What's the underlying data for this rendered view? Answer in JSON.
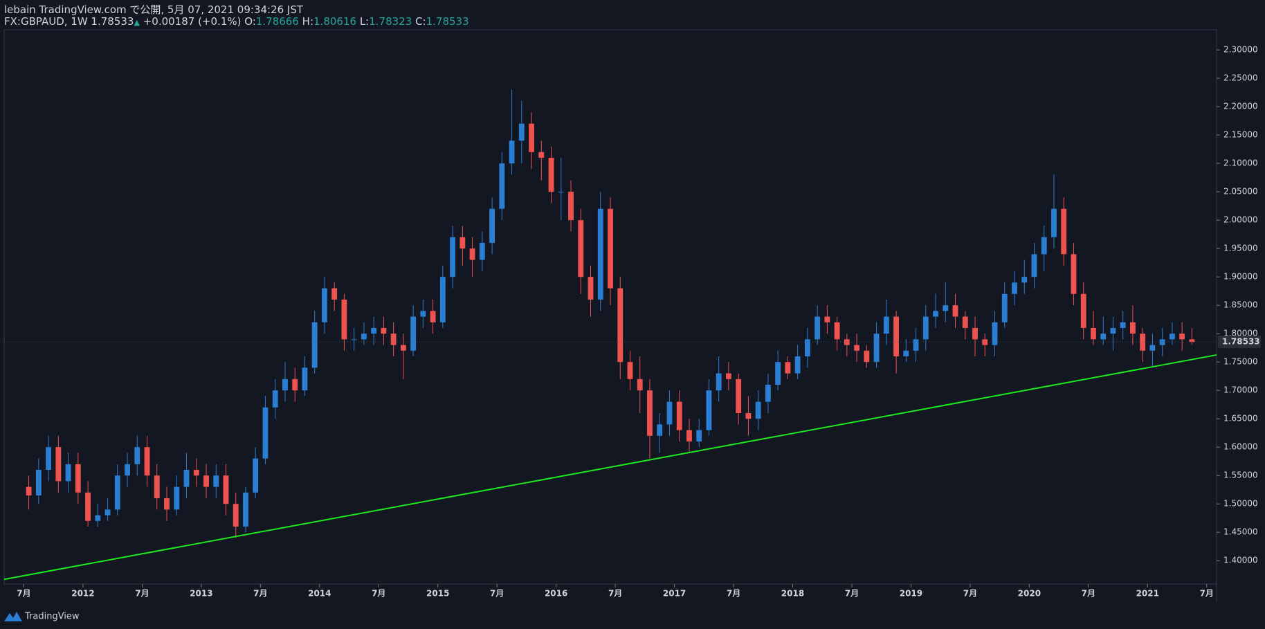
{
  "header": {
    "line1": "lebain TradingView.com で公開, 5月 07, 2021 09:34:26 JST",
    "symbol": "FX:GBPAUD, 1W 1.78533",
    "arrow": "▲",
    "change": "+0.00187 (+0.1%)",
    "o_label": "O:",
    "o": "1.78666",
    "h_label": "H:",
    "h": "1.80616",
    "l_label": "L:",
    "l": "1.78323",
    "c_label": "C:",
    "c": "1.78533"
  },
  "footer": {
    "brand": "TradingView"
  },
  "chart_data": {
    "type": "candlestick",
    "up_color": "#2a7fd4",
    "down_color": "#ef5350",
    "x": [
      "2011-07",
      "2011-08",
      "2011-09",
      "2011-10",
      "2011-11",
      "2011-12",
      "2012-01",
      "2012-02",
      "2012-03",
      "2012-04",
      "2012-05",
      "2012-06",
      "2012-07",
      "2012-08",
      "2012-09",
      "2012-10",
      "2012-11",
      "2012-12",
      "2013-01",
      "2013-02",
      "2013-03",
      "2013-04",
      "2013-05",
      "2013-06",
      "2013-07",
      "2013-08",
      "2013-09",
      "2013-10",
      "2013-11",
      "2013-12",
      "2014-01",
      "2014-02",
      "2014-03",
      "2014-04",
      "2014-05",
      "2014-06",
      "2014-07",
      "2014-08",
      "2014-09",
      "2014-10",
      "2014-11",
      "2014-12",
      "2015-01",
      "2015-02",
      "2015-03",
      "2015-04",
      "2015-05",
      "2015-06",
      "2015-07",
      "2015-08",
      "2015-09",
      "2015-10",
      "2015-11",
      "2015-12",
      "2016-01",
      "2016-02",
      "2016-03",
      "2016-04",
      "2016-05",
      "2016-06",
      "2016-07",
      "2016-08",
      "2016-09",
      "2016-10",
      "2016-11",
      "2016-12",
      "2017-01",
      "2017-02",
      "2017-03",
      "2017-04",
      "2017-05",
      "2017-06",
      "2017-07",
      "2017-08",
      "2017-09",
      "2017-10",
      "2017-11",
      "2017-12",
      "2018-01",
      "2018-02",
      "2018-03",
      "2018-04",
      "2018-05",
      "2018-06",
      "2018-07",
      "2018-08",
      "2018-09",
      "2018-10",
      "2018-11",
      "2018-12",
      "2019-01",
      "2019-02",
      "2019-03",
      "2019-04",
      "2019-05",
      "2019-06",
      "2019-07",
      "2019-08",
      "2019-09",
      "2019-10",
      "2019-11",
      "2019-12",
      "2020-01",
      "2020-02",
      "2020-03",
      "2020-04",
      "2020-05",
      "2020-06",
      "2020-07",
      "2020-08",
      "2020-09",
      "2020-10",
      "2020-11",
      "2020-12",
      "2021-01",
      "2021-02",
      "2021-03",
      "2021-04",
      "2021-05"
    ],
    "open": [
      1.53,
      1.515,
      1.56,
      1.6,
      1.54,
      1.57,
      1.52,
      1.47,
      1.48,
      1.49,
      1.55,
      1.57,
      1.6,
      1.55,
      1.51,
      1.49,
      1.53,
      1.56,
      1.55,
      1.53,
      1.55,
      1.5,
      1.46,
      1.52,
      1.58,
      1.67,
      1.7,
      1.72,
      1.7,
      1.74,
      1.82,
      1.88,
      1.86,
      1.79,
      1.79,
      1.8,
      1.81,
      1.8,
      1.78,
      1.77,
      1.83,
      1.84,
      1.82,
      1.9,
      1.97,
      1.95,
      1.93,
      1.96,
      2.02,
      2.1,
      2.14,
      2.17,
      2.12,
      2.11,
      2.05,
      2.05,
      2.0,
      1.9,
      1.86,
      2.02,
      1.88,
      1.75,
      1.72,
      1.7,
      1.62,
      1.64,
      1.68,
      1.63,
      1.61,
      1.63,
      1.7,
      1.73,
      1.72,
      1.66,
      1.65,
      1.68,
      1.71,
      1.75,
      1.73,
      1.76,
      1.79,
      1.83,
      1.82,
      1.79,
      1.78,
      1.77,
      1.75,
      1.8,
      1.83,
      1.76,
      1.77,
      1.79,
      1.83,
      1.84,
      1.85,
      1.83,
      1.81,
      1.79,
      1.78,
      1.82,
      1.87,
      1.89,
      1.9,
      1.94,
      1.97,
      2.02,
      1.94,
      1.87,
      1.81,
      1.79,
      1.8,
      1.81,
      1.82,
      1.8,
      1.77,
      1.78,
      1.79,
      1.8,
      1.79
    ],
    "high": [
      1.55,
      1.58,
      1.62,
      1.62,
      1.59,
      1.59,
      1.54,
      1.5,
      1.51,
      1.57,
      1.59,
      1.62,
      1.62,
      1.57,
      1.53,
      1.55,
      1.59,
      1.58,
      1.57,
      1.57,
      1.57,
      1.52,
      1.53,
      1.6,
      1.69,
      1.72,
      1.75,
      1.74,
      1.76,
      1.84,
      1.9,
      1.89,
      1.87,
      1.81,
      1.82,
      1.83,
      1.83,
      1.82,
      1.8,
      1.85,
      1.86,
      1.86,
      1.92,
      1.99,
      1.99,
      1.97,
      1.98,
      2.04,
      2.12,
      2.23,
      2.21,
      2.19,
      2.14,
      2.13,
      2.11,
      2.07,
      2.02,
      1.92,
      2.05,
      2.04,
      1.9,
      1.77,
      1.76,
      1.72,
      1.66,
      1.7,
      1.7,
      1.65,
      1.65,
      1.72,
      1.76,
      1.75,
      1.73,
      1.69,
      1.7,
      1.73,
      1.77,
      1.76,
      1.78,
      1.81,
      1.85,
      1.85,
      1.83,
      1.8,
      1.8,
      1.78,
      1.82,
      1.86,
      1.84,
      1.79,
      1.81,
      1.85,
      1.87,
      1.89,
      1.87,
      1.84,
      1.83,
      1.8,
      1.84,
      1.89,
      1.91,
      1.93,
      1.96,
      1.99,
      2.08,
      2.04,
      1.96,
      1.89,
      1.84,
      1.83,
      1.83,
      1.84,
      1.85,
      1.81,
      1.8,
      1.81,
      1.82,
      1.82,
      1.81
    ],
    "low": [
      1.49,
      1.5,
      1.54,
      1.52,
      1.52,
      1.5,
      1.46,
      1.46,
      1.47,
      1.48,
      1.53,
      1.55,
      1.53,
      1.49,
      1.47,
      1.48,
      1.51,
      1.53,
      1.51,
      1.51,
      1.48,
      1.44,
      1.45,
      1.51,
      1.57,
      1.65,
      1.68,
      1.68,
      1.69,
      1.73,
      1.8,
      1.84,
      1.77,
      1.77,
      1.78,
      1.78,
      1.78,
      1.76,
      1.72,
      1.76,
      1.81,
      1.8,
      1.81,
      1.88,
      1.92,
      1.9,
      1.91,
      1.94,
      2.0,
      2.08,
      2.1,
      2.09,
      2.07,
      2.03,
      2.0,
      1.98,
      1.87,
      1.83,
      1.84,
      1.85,
      1.72,
      1.7,
      1.66,
      1.58,
      1.59,
      1.62,
      1.61,
      1.59,
      1.6,
      1.62,
      1.68,
      1.7,
      1.64,
      1.62,
      1.63,
      1.66,
      1.7,
      1.72,
      1.72,
      1.74,
      1.78,
      1.8,
      1.77,
      1.76,
      1.75,
      1.74,
      1.74,
      1.78,
      1.73,
      1.75,
      1.75,
      1.77,
      1.81,
      1.82,
      1.81,
      1.79,
      1.76,
      1.76,
      1.76,
      1.81,
      1.85,
      1.87,
      1.88,
      1.91,
      1.95,
      1.92,
      1.85,
      1.79,
      1.78,
      1.78,
      1.77,
      1.79,
      1.78,
      1.75,
      1.74,
      1.76,
      1.78,
      1.77,
      1.78
    ],
    "close": [
      1.515,
      1.56,
      1.6,
      1.54,
      1.57,
      1.52,
      1.47,
      1.48,
      1.49,
      1.55,
      1.57,
      1.6,
      1.55,
      1.51,
      1.49,
      1.53,
      1.56,
      1.55,
      1.53,
      1.55,
      1.5,
      1.46,
      1.52,
      1.58,
      1.67,
      1.7,
      1.72,
      1.7,
      1.74,
      1.82,
      1.88,
      1.86,
      1.79,
      1.79,
      1.8,
      1.81,
      1.8,
      1.78,
      1.77,
      1.83,
      1.84,
      1.82,
      1.9,
      1.97,
      1.95,
      1.93,
      1.96,
      2.02,
      2.1,
      2.14,
      2.17,
      2.12,
      2.11,
      2.05,
      2.05,
      2.0,
      1.9,
      1.86,
      2.02,
      1.88,
      1.75,
      1.72,
      1.7,
      1.62,
      1.64,
      1.68,
      1.63,
      1.61,
      1.63,
      1.7,
      1.73,
      1.72,
      1.66,
      1.65,
      1.68,
      1.71,
      1.75,
      1.73,
      1.76,
      1.79,
      1.83,
      1.82,
      1.79,
      1.78,
      1.77,
      1.75,
      1.8,
      1.83,
      1.76,
      1.77,
      1.79,
      1.83,
      1.84,
      1.85,
      1.83,
      1.81,
      1.79,
      1.78,
      1.82,
      1.87,
      1.89,
      1.9,
      1.94,
      1.97,
      2.02,
      1.94,
      1.87,
      1.81,
      1.79,
      1.8,
      1.81,
      1.82,
      1.8,
      1.77,
      1.78,
      1.79,
      1.8,
      1.79,
      1.78533
    ],
    "trendline": {
      "x": [
        "2011-05",
        "2021-08"
      ],
      "values": [
        1.367,
        1.7625
      ],
      "color": "#1ee81e"
    },
    "current_price": 1.78533,
    "xlim": [
      "2011-05",
      "2021-08"
    ],
    "xticks": [
      {
        "value": "2011-07",
        "label": "7月"
      },
      {
        "value": "2012-01",
        "label": "2012"
      },
      {
        "value": "2012-07",
        "label": "7月"
      },
      {
        "value": "2013-01",
        "label": "2013"
      },
      {
        "value": "2013-07",
        "label": "7月"
      },
      {
        "value": "2014-01",
        "label": "2014"
      },
      {
        "value": "2014-07",
        "label": "7月"
      },
      {
        "value": "2015-01",
        "label": "2015"
      },
      {
        "value": "2015-07",
        "label": "7月"
      },
      {
        "value": "2016-01",
        "label": "2016"
      },
      {
        "value": "2016-07",
        "label": "7月"
      },
      {
        "value": "2017-01",
        "label": "2017"
      },
      {
        "value": "2017-07",
        "label": "7月"
      },
      {
        "value": "2018-01",
        "label": "2018"
      },
      {
        "value": "2018-07",
        "label": "7月"
      },
      {
        "value": "2019-01",
        "label": "2019"
      },
      {
        "value": "2019-07",
        "label": "7月"
      },
      {
        "value": "2020-01",
        "label": "2020"
      },
      {
        "value": "2020-07",
        "label": "7月"
      },
      {
        "value": "2021-01",
        "label": "2021"
      },
      {
        "value": "2021-07",
        "label": "7月"
      }
    ],
    "ylim": [
      1.3588,
      2.3355
    ],
    "yticks": [
      {
        "value": 1.4,
        "label": "1.40000"
      },
      {
        "value": 1.45,
        "label": "1.45000"
      },
      {
        "value": 1.5,
        "label": "1.50000"
      },
      {
        "value": 1.55,
        "label": "1.55000"
      },
      {
        "value": 1.6,
        "label": "1.60000"
      },
      {
        "value": 1.65,
        "label": "1.65000"
      },
      {
        "value": 1.7,
        "label": "1.70000"
      },
      {
        "value": 1.75,
        "label": "1.75000"
      },
      {
        "value": 1.8,
        "label": "1.80000"
      },
      {
        "value": 1.85,
        "label": "1.85000"
      },
      {
        "value": 1.9,
        "label": "1.90000"
      },
      {
        "value": 1.95,
        "label": "1.95000"
      },
      {
        "value": 2.0,
        "label": "2.00000"
      },
      {
        "value": 2.05,
        "label": "2.05000"
      },
      {
        "value": 2.1,
        "label": "2.10000"
      },
      {
        "value": 2.15,
        "label": "2.15000"
      },
      {
        "value": 2.2,
        "label": "2.20000"
      },
      {
        "value": 2.25,
        "label": "2.25000"
      },
      {
        "value": 2.3,
        "label": "2.30000"
      }
    ]
  }
}
